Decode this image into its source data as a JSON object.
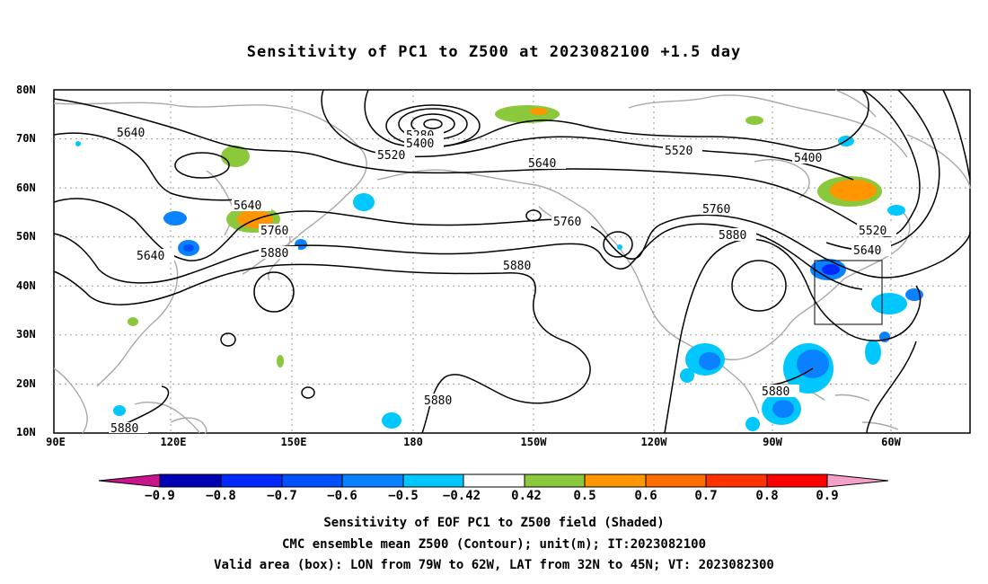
{
  "title": "Sensitivity of PC1 to Z500 at 2023082100 +1.5 day",
  "lat_labels": [
    "80N",
    "70N",
    "60N",
    "50N",
    "40N",
    "30N",
    "20N",
    "10N"
  ],
  "lon_labels": [
    "90E",
    "120E",
    "150E",
    "180",
    "150W",
    "120W",
    "90W",
    "60W"
  ],
  "contour_labels": [
    {
      "text": "5640",
      "id": "c1"
    },
    {
      "text": "5280",
      "id": "c2"
    },
    {
      "text": "5400",
      "id": "c3"
    },
    {
      "text": "5520",
      "id": "c4"
    },
    {
      "text": "5640",
      "id": "c5"
    },
    {
      "text": "5520",
      "id": "c6"
    },
    {
      "text": "5400",
      "id": "c7"
    },
    {
      "text": "5640",
      "id": "c8"
    },
    {
      "text": "5760",
      "id": "c9"
    },
    {
      "text": "5880",
      "id": "c10"
    },
    {
      "text": "5640",
      "id": "c11"
    },
    {
      "text": "5760",
      "id": "c12"
    },
    {
      "text": "5760",
      "id": "c13"
    },
    {
      "text": "5880",
      "id": "c14"
    },
    {
      "text": "5880",
      "id": "c15"
    },
    {
      "text": "5520",
      "id": "c16"
    },
    {
      "text": "5640",
      "id": "c17"
    },
    {
      "text": "5880",
      "id": "c18"
    },
    {
      "text": "5880",
      "id": "c19"
    },
    {
      "text": "5880",
      "id": "c20"
    }
  ],
  "colorbar": {
    "labels": [
      "−0.9",
      "−0.8",
      "−0.7",
      "−0.6",
      "−0.5",
      "−0.42",
      "0.42",
      "0.5",
      "0.6",
      "0.7",
      "0.8",
      "0.9"
    ],
    "colors": [
      "#c8158c",
      "#0000b4",
      "#0028ff",
      "#0050ff",
      "#0a82ff",
      "#00c8ff",
      "#ffffff",
      "#8cc83c",
      "#ff9600",
      "#ff6e00",
      "#ff3200",
      "#ff0000",
      "#f5a0c8"
    ]
  },
  "footer": {
    "line1": "Sensitivity of EOF PC1 to Z500 field (Shaded)",
    "line2": "CMC ensemble mean Z500 (Contour); unit(m); IT:2023082100",
    "line3": "Valid area (box): LON from 79W to 62W, LAT from 32N to 45N; VT: 2023082300"
  }
}
